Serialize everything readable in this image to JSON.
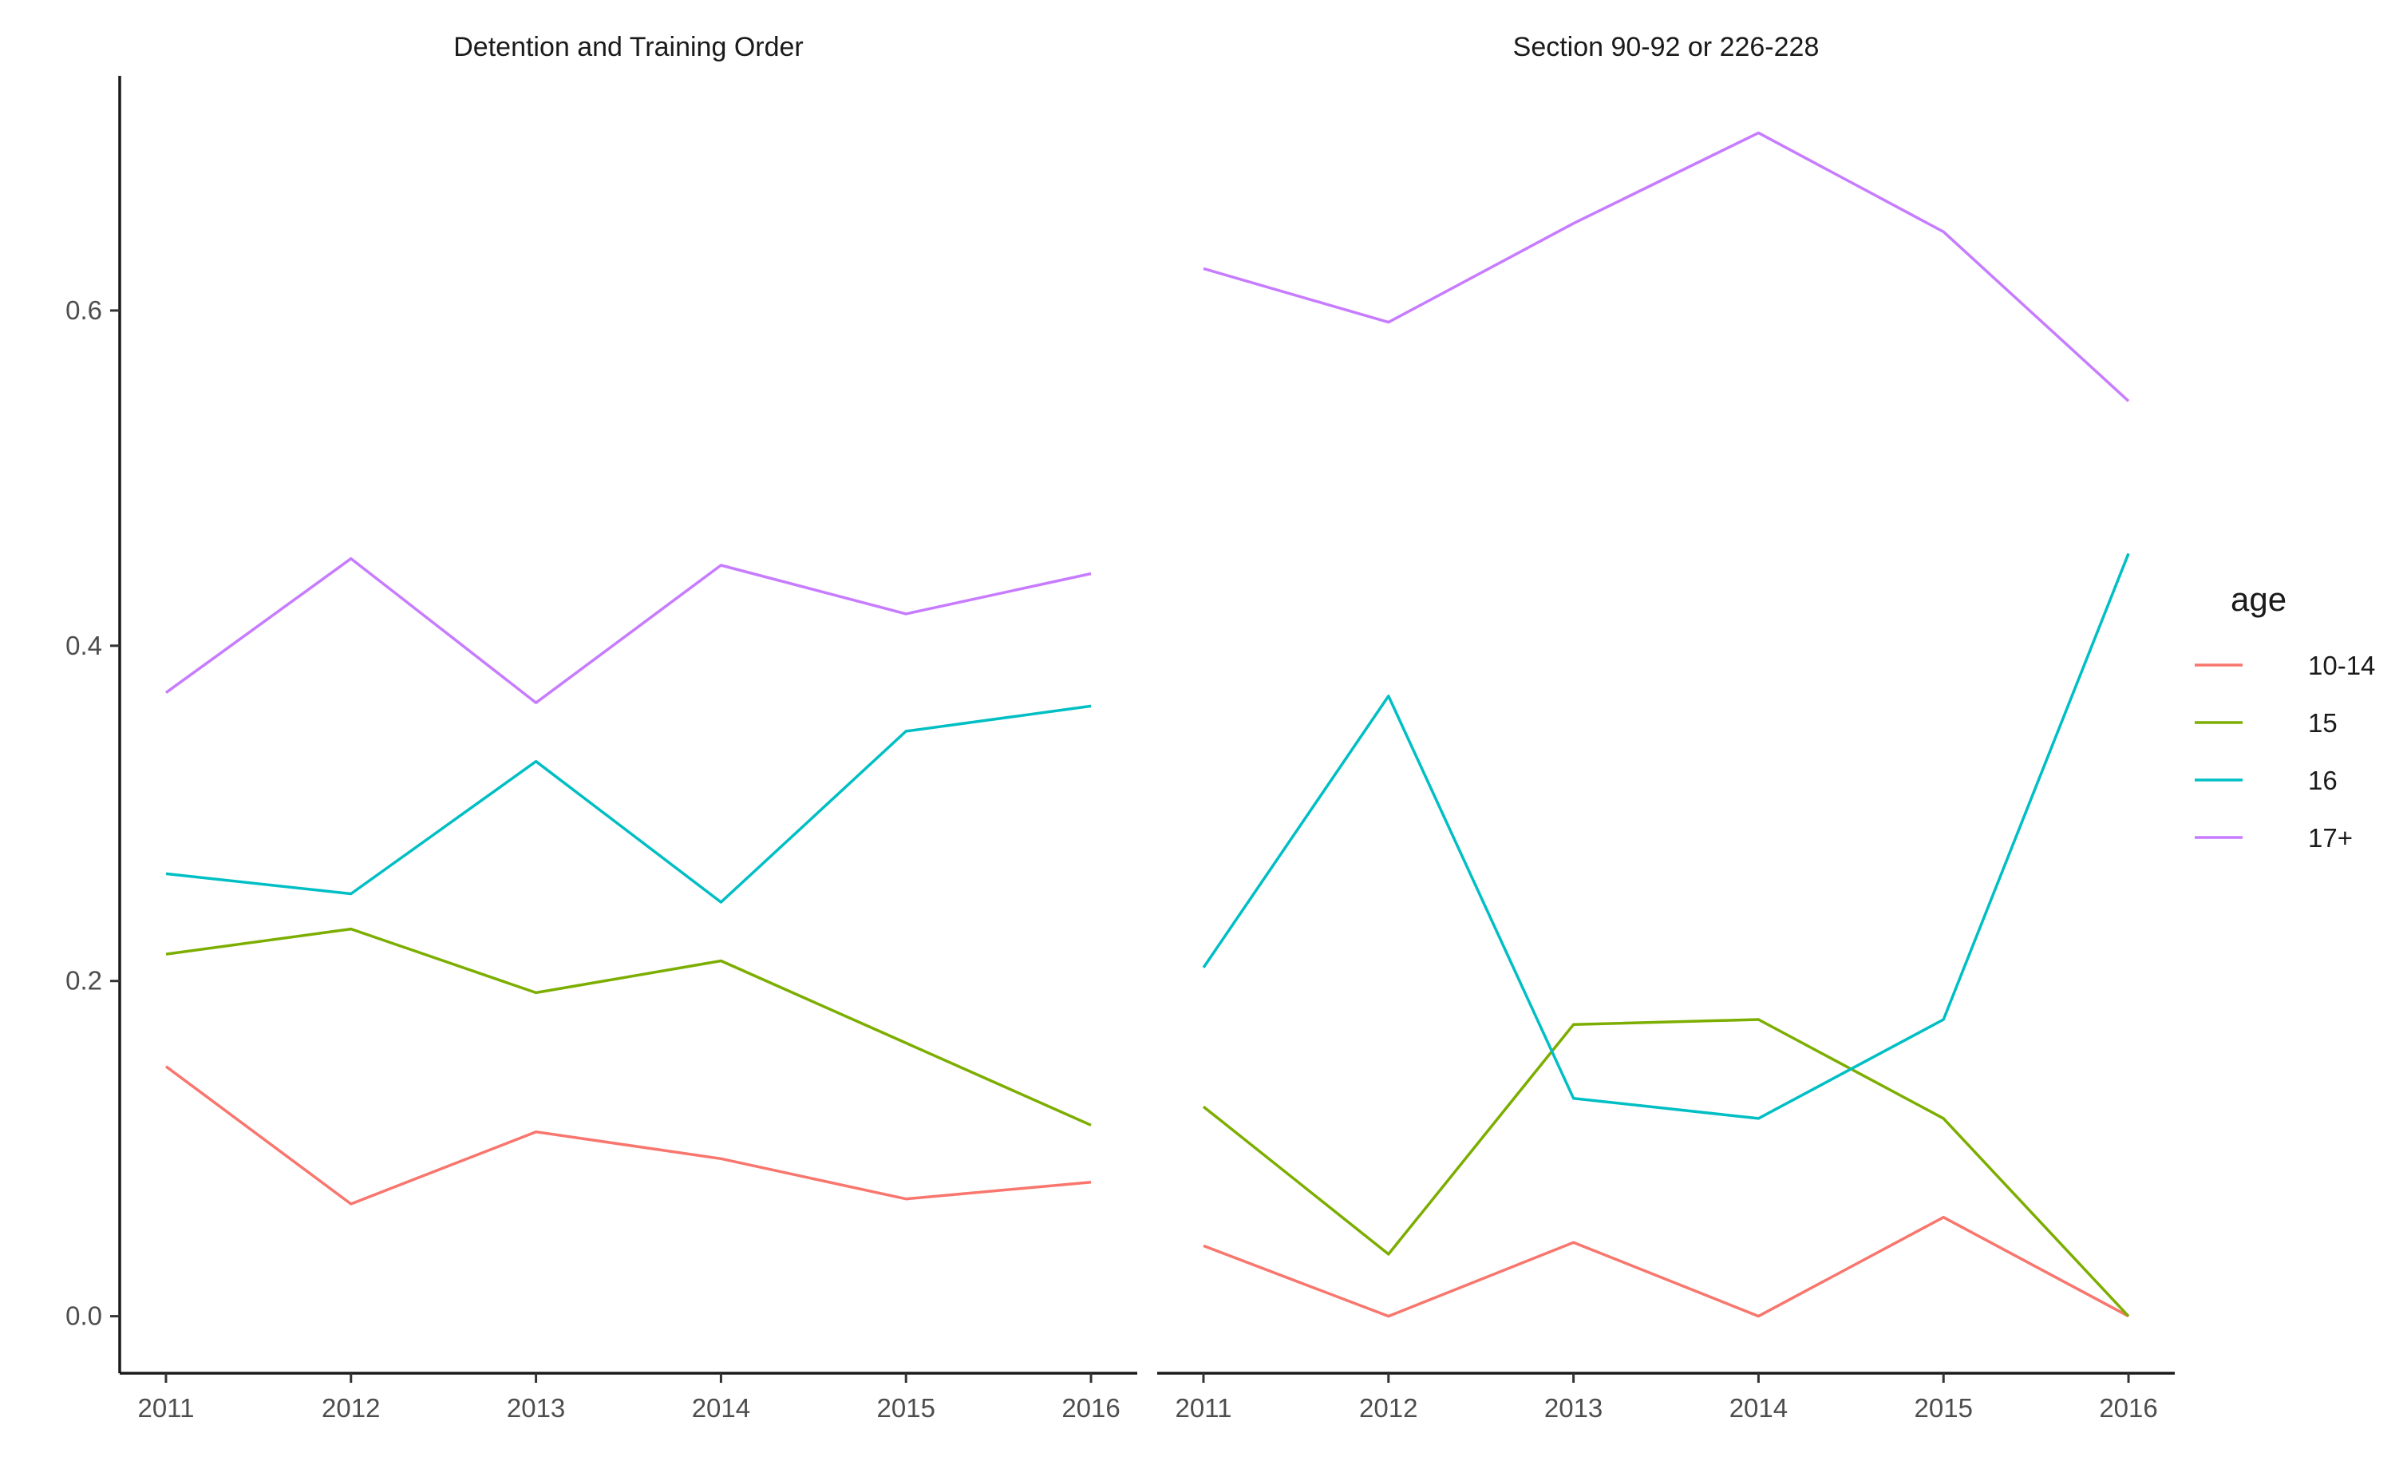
{
  "chart_data": {
    "type": "line",
    "facets": [
      {
        "title": "Detention and Training Order",
        "x": [
          2011,
          2012,
          2013,
          2014,
          2015,
          2016
        ],
        "series": [
          {
            "name": "10-14",
            "values": [
              0.149,
              0.067,
              0.11,
              0.094,
              0.07,
              0.08
            ]
          },
          {
            "name": "15",
            "values": [
              0.216,
              0.231,
              0.193,
              0.212,
              0.163,
              0.114
            ]
          },
          {
            "name": "16",
            "values": [
              0.264,
              0.252,
              0.331,
              0.247,
              0.349,
              0.364
            ]
          },
          {
            "name": "17+",
            "values": [
              0.372,
              0.452,
              0.366,
              0.448,
              0.419,
              0.443
            ]
          }
        ]
      },
      {
        "title": "Section 90-92 or 226-228",
        "x": [
          2011,
          2012,
          2013,
          2014,
          2015,
          2016
        ],
        "series": [
          {
            "name": "10-14",
            "values": [
              0.042,
              0.0,
              0.044,
              0.0,
              0.059,
              0.0
            ]
          },
          {
            "name": "15",
            "values": [
              0.125,
              0.037,
              0.174,
              0.177,
              0.118,
              0.0
            ]
          },
          {
            "name": "16",
            "values": [
              0.208,
              0.37,
              0.13,
              0.118,
              0.177,
              0.455
            ]
          },
          {
            "name": "17+",
            "values": [
              0.625,
              0.593,
              0.652,
              0.706,
              0.647,
              0.546
            ]
          }
        ]
      }
    ],
    "x_ticks": [
      "2011",
      "2012",
      "2013",
      "2014",
      "2015",
      "2016"
    ],
    "y_ticks": [
      "0.0",
      "0.2",
      "0.4",
      "0.6"
    ],
    "ylim": [
      -0.034,
      0.74
    ],
    "xlim": [
      2010.75,
      2016.25
    ],
    "xlabel": "",
    "ylabel": "",
    "grid": false,
    "legend": {
      "title": "age",
      "position": "right",
      "entries": [
        {
          "name": "10-14",
          "color": "#F8766D"
        },
        {
          "name": "15",
          "color": "#7CAE00"
        },
        {
          "name": "16",
          "color": "#00BFC4"
        },
        {
          "name": "17+",
          "color": "#C77CFF"
        }
      ]
    }
  }
}
